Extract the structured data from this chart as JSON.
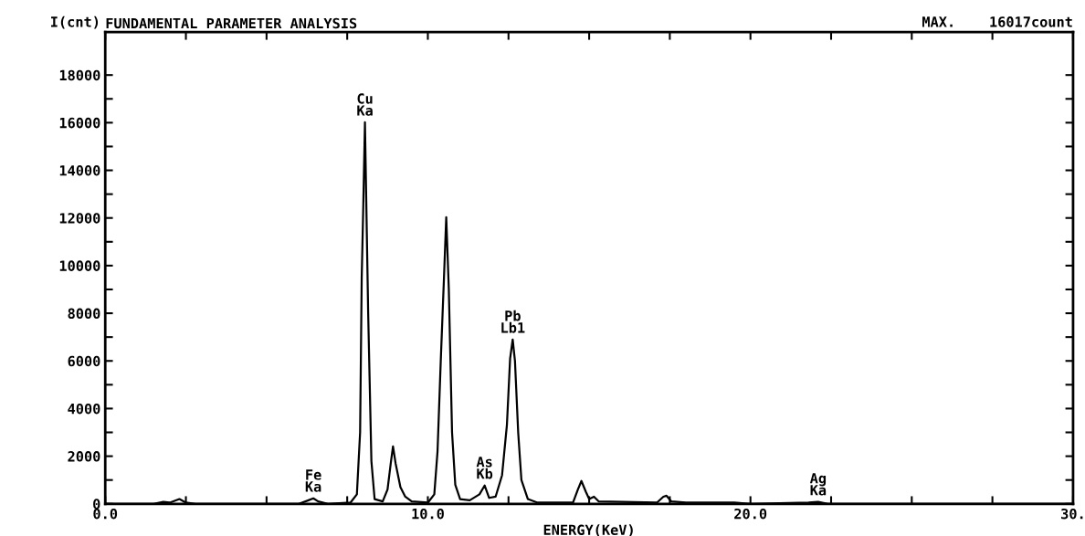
{
  "chart_data": {
    "type": "line",
    "title": "FUNDAMENTAL PARAMETER ANALYSIS",
    "ylabel": "I(cnt)",
    "xlabel": "ENERGY(KeV)",
    "annotations": [
      "MAX.    16017count",
      {
        "text": "Fe\nKa",
        "x": 6.45,
        "y": 230
      },
      {
        "text": "Cu\nKa",
        "x": 8.05,
        "y": 16017
      },
      {
        "text": "As\nKb",
        "x": 11.76,
        "y": 770
      },
      {
        "text": "Pb\nLb1",
        "x": 12.63,
        "y": 6900
      },
      {
        "text": "Ag\nKa",
        "x": 22.1,
        "y": 80
      }
    ],
    "series": [
      {
        "color": "#000000",
        "x": [
          0.0,
          1.5,
          1.8,
          2.0,
          2.3,
          2.5,
          2.8,
          6.0,
          6.3,
          6.45,
          6.6,
          6.9,
          7.6,
          7.8,
          7.9,
          7.95,
          8.0,
          8.05,
          8.1,
          8.15,
          8.25,
          8.35,
          8.6,
          8.75,
          8.85,
          8.92,
          9.0,
          9.15,
          9.3,
          9.5,
          10.0,
          10.2,
          10.3,
          10.4,
          10.5,
          10.57,
          10.65,
          10.75,
          10.85,
          11.0,
          11.3,
          11.6,
          11.76,
          11.9,
          12.1,
          12.3,
          12.45,
          12.55,
          12.63,
          12.7,
          12.8,
          12.9,
          13.1,
          13.4,
          14.5,
          14.65,
          14.76,
          14.9,
          15.0,
          15.15,
          15.3,
          17.1,
          17.3,
          17.4,
          17.55,
          18.0,
          19.5,
          20.0,
          21.8,
          22.1,
          22.4,
          30.0
        ],
        "values": [
          0,
          0,
          80,
          50,
          200,
          50,
          0,
          0,
          150,
          230,
          100,
          0,
          50,
          400,
          3000,
          9500,
          12600,
          16017,
          12000,
          8000,
          1800,
          200,
          100,
          600,
          1700,
          2410,
          1700,
          700,
          300,
          100,
          50,
          400,
          2200,
          6000,
          9500,
          12030,
          9000,
          3000,
          800,
          200,
          150,
          400,
          770,
          250,
          300,
          1200,
          3300,
          6100,
          6900,
          6000,
          3000,
          1000,
          200,
          50,
          50,
          600,
          960,
          500,
          200,
          300,
          100,
          50,
          300,
          340,
          100,
          50,
          50,
          0,
          50,
          80,
          0,
          0
        ]
      }
    ],
    "xlim": [
      0,
      30
    ],
    "ylim": [
      0,
      19800
    ],
    "xticks": [
      {
        "value": 0,
        "label": "0.0"
      },
      {
        "value": 2.5,
        "label": null
      },
      {
        "value": 5,
        "label": null
      },
      {
        "value": 7.5,
        "label": null
      },
      {
        "value": 10,
        "label": "10.0"
      },
      {
        "value": 12.5,
        "label": null
      },
      {
        "value": 15,
        "label": null
      },
      {
        "value": 17.5,
        "label": null
      },
      {
        "value": 20,
        "label": "20.0"
      },
      {
        "value": 22.5,
        "label": null
      },
      {
        "value": 25,
        "label": null
      },
      {
        "value": 27.5,
        "label": null
      },
      {
        "value": 30,
        "label": "30."
      }
    ],
    "yticks": [
      0,
      {
        "value": 1000,
        "label": null
      },
      2000,
      {
        "value": 3000,
        "label": null
      },
      4000,
      {
        "value": 5000,
        "label": null
      },
      6000,
      {
        "value": 7000,
        "label": null
      },
      8000,
      {
        "value": 9000,
        "label": null
      },
      10000,
      {
        "value": 11000,
        "label": null
      },
      12000,
      {
        "value": 13000,
        "label": null
      },
      14000,
      {
        "value": 15000,
        "label": null
      },
      16000,
      {
        "value": 17000,
        "label": null
      },
      18000
    ],
    "grid": false,
    "legend": false,
    "marker": "none",
    "line_style": "solid"
  }
}
